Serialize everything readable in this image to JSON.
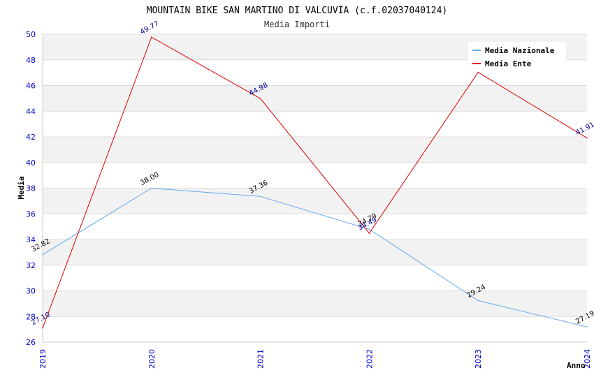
{
  "chart_data": {
    "type": "line",
    "title": "MOUNTAIN BIKE SAN MARTINO DI VALCUVIA (c.f.02037040124)",
    "subtitle": "Media Importi",
    "xlabel": "Anno",
    "ylabel": "Media",
    "categories": [
      "2019",
      "2020",
      "2021",
      "2022",
      "2023",
      "2024"
    ],
    "ylim": [
      26,
      50
    ],
    "yticks": [
      "26",
      "28",
      "30",
      "32",
      "34",
      "36",
      "38",
      "40",
      "42",
      "44",
      "46",
      "48",
      "50"
    ],
    "grid": true,
    "legend_position": "top-right",
    "series": [
      {
        "name": "Media Nazionale",
        "color": "#66aaee",
        "label_color": "#000000",
        "values": [
          32.82,
          38.0,
          37.36,
          34.79,
          29.24,
          27.19
        ],
        "labels": [
          "32.82",
          "38.00",
          "37.36",
          "34.79",
          "29.24",
          "27.19"
        ]
      },
      {
        "name": "Media Ente",
        "color": "#dd0000",
        "label_color": "#000099",
        "values": [
          27.1,
          49.77,
          44.98,
          34.49,
          47.03,
          41.91
        ],
        "labels": [
          "27.10",
          "49.77",
          "44.98",
          "34.49",
          "",
          "41.91"
        ]
      }
    ]
  }
}
